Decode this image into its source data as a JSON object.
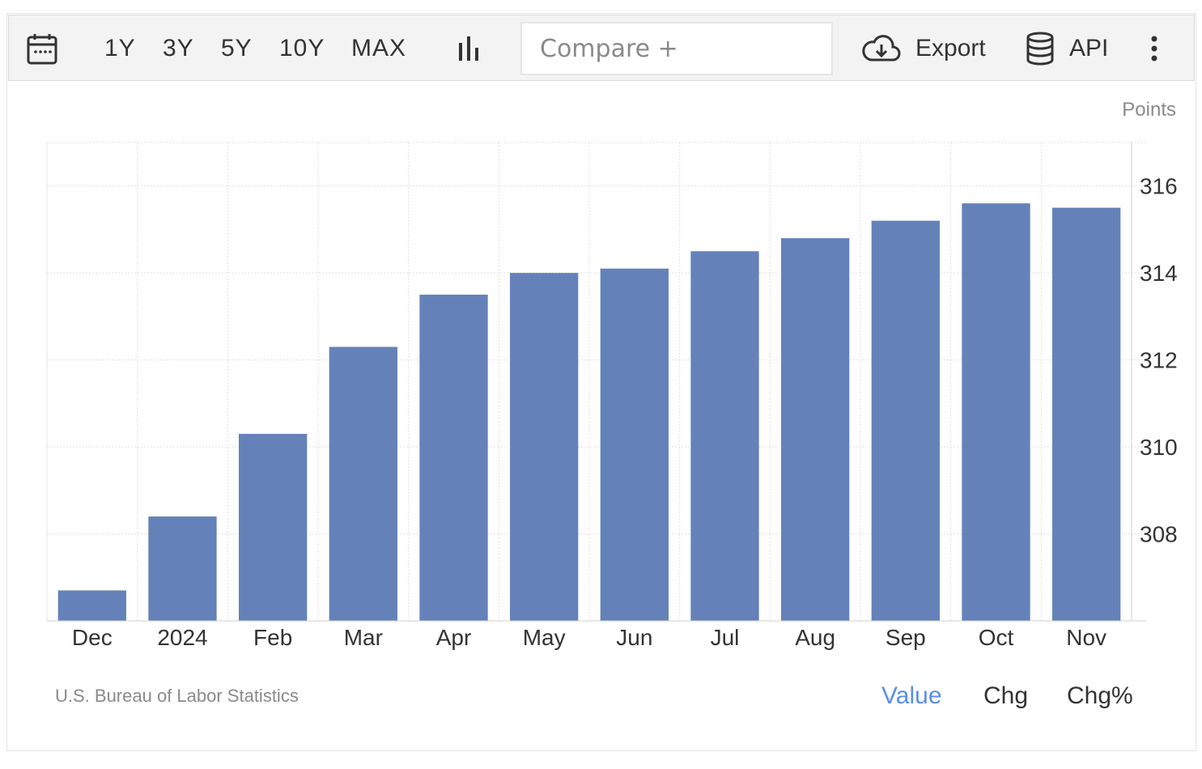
{
  "toolbar": {
    "calendar_icon": "calendar-icon",
    "ranges": [
      "1Y",
      "3Y",
      "5Y",
      "10Y",
      "MAX"
    ],
    "chart_type_icon": "bar-chart-icon",
    "compare_placeholder": "Compare +",
    "export_label": "Export",
    "export_icon": "cloud-download-icon",
    "api_label": "API",
    "api_icon": "database-icon",
    "more_icon": "vertical-ellipsis-icon"
  },
  "chart_data": {
    "type": "bar",
    "categories": [
      "Dec",
      "2024",
      "Feb",
      "Mar",
      "Apr",
      "May",
      "Jun",
      "Jul",
      "Aug",
      "Sep",
      "Oct",
      "Nov"
    ],
    "values": [
      306.7,
      308.4,
      310.3,
      312.3,
      313.5,
      314.0,
      314.1,
      314.5,
      314.8,
      315.2,
      315.6,
      315.5
    ],
    "unit_label": "Points",
    "ylim": [
      306.0,
      317.0
    ],
    "yticks": [
      308,
      310,
      312,
      314,
      316
    ],
    "grid": true,
    "y_axis_side": "right",
    "bar_color": "#6482b9"
  },
  "footer": {
    "source": "U.S. Bureau of Labor Statistics",
    "modes": [
      "Value",
      "Chg",
      "Chg%"
    ],
    "active_mode_color": "#5b8ee6"
  }
}
